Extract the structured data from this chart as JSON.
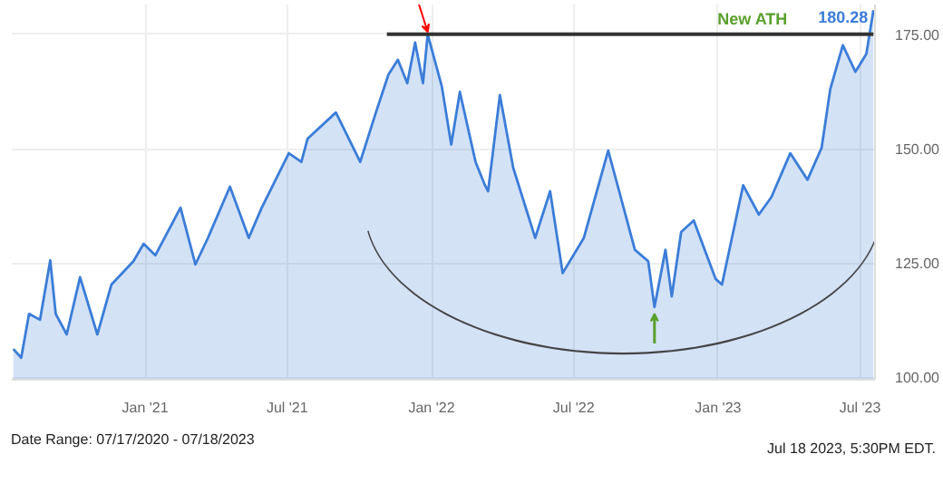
{
  "chart_data": {
    "type": "area",
    "xlim": [
      "2020-07-15",
      "2023-07-20"
    ],
    "ylim": [
      99.5,
      181.5
    ],
    "xticks": [
      {
        "value": "2021-01-01",
        "label": "Jan '21"
      },
      {
        "value": "2021-07-01",
        "label": "Jul '21"
      },
      {
        "value": "2022-01-01",
        "label": "Jan '22"
      },
      {
        "value": "2022-07-01",
        "label": "Jul '22"
      },
      {
        "value": "2023-01-01",
        "label": "Jan '23"
      },
      {
        "value": "2023-07-01",
        "label": "Jul '23"
      }
    ],
    "yticks": [
      {
        "value": 100,
        "label": "100.00"
      },
      {
        "value": 125,
        "label": "125.00"
      },
      {
        "value": 150,
        "label": "150.00"
      },
      {
        "value": 175,
        "label": "175.00"
      }
    ],
    "grid": true,
    "series": [
      {
        "color": "#3b7dd8",
        "value_labels": [
          null,
          null,
          null,
          null,
          null,
          null,
          null,
          null,
          null,
          null,
          null,
          null,
          null,
          null,
          null,
          null,
          null,
          null,
          null,
          null,
          null,
          null,
          null,
          null,
          null,
          null,
          null,
          null,
          null,
          null,
          null,
          null,
          null,
          null,
          null,
          null,
          null,
          null,
          null,
          null,
          null,
          null,
          null,
          null,
          null,
          null,
          null,
          null,
          null,
          null,
          null,
          null,
          null,
          null,
          null,
          null,
          null,
          null,
          null,
          null,
          null,
          null,
          null,
          null,
          "180.28"
        ],
        "x": [
          "2020-07-17",
          "2020-07-27",
          "2020-08-06",
          "2020-08-20",
          "2020-09-02",
          "2020-09-09",
          "2020-09-23",
          "2020-10-10",
          "2020-11-01",
          "2020-11-19",
          "2020-12-17",
          "2020-12-30",
          "2021-01-14",
          "2021-02-15",
          "2021-03-06",
          "2021-03-22",
          "2021-04-19",
          "2021-05-13",
          "2021-05-29",
          "2021-07-03",
          "2021-07-19",
          "2021-07-27",
          "2021-09-01",
          "2021-10-02",
          "2021-10-22",
          "2021-11-07",
          "2021-11-19",
          "2021-12-01",
          "2021-12-11",
          "2021-12-21",
          "2021-12-27",
          "2022-01-14",
          "2022-01-26",
          "2022-02-06",
          "2022-02-26",
          "2022-03-10",
          "2022-03-14",
          "2022-03-29",
          "2022-04-15",
          "2022-05-13",
          "2022-06-01",
          "2022-06-17",
          "2022-07-14",
          "2022-08-14",
          "2022-08-28",
          "2022-09-17",
          "2022-10-04",
          "2022-10-12",
          "2022-10-26",
          "2022-11-03",
          "2022-11-15",
          "2022-12-01",
          "2022-12-29",
          "2023-01-06",
          "2023-02-02",
          "2023-02-22",
          "2023-03-10",
          "2023-04-03",
          "2023-04-25",
          "2023-05-13",
          "2023-05-24",
          "2023-06-09",
          "2023-06-25",
          "2023-07-09",
          "2023-07-18"
        ],
        "values": [
          106.2,
          104.3,
          113.9,
          112.6,
          125.6,
          113.9,
          109.4,
          121.9,
          109.4,
          120.3,
          125.4,
          129.2,
          126.7,
          137.1,
          124.7,
          130.5,
          141.7,
          130.5,
          136.9,
          149.0,
          147.1,
          152.2,
          157.9,
          147.1,
          157.9,
          166.2,
          169.4,
          164.3,
          173.2,
          164.3,
          175.0,
          163.6,
          150.9,
          162.4,
          147.1,
          142.0,
          140.7,
          161.7,
          145.8,
          130.5,
          140.7,
          122.8,
          130.5,
          149.6,
          140.7,
          127.9,
          125.4,
          115.4,
          127.9,
          117.7,
          131.8,
          134.3,
          121.5,
          120.3,
          142.0,
          135.6,
          139.4,
          149.0,
          143.2,
          150.2,
          163.0,
          172.6,
          166.8,
          170.7,
          180.28
        ]
      },
      {
        "type": "line",
        "color": "#333333",
        "x": [
          "2021-11-05",
          "2023-07-18"
        ],
        "values": [
          175.0,
          175.0
        ]
      }
    ],
    "annotations": [
      "New ATH",
      "Date Range: 07/17/2020 - 07/18/2023",
      "Jul 18 2023, 5:30PM EDT."
    ]
  }
}
